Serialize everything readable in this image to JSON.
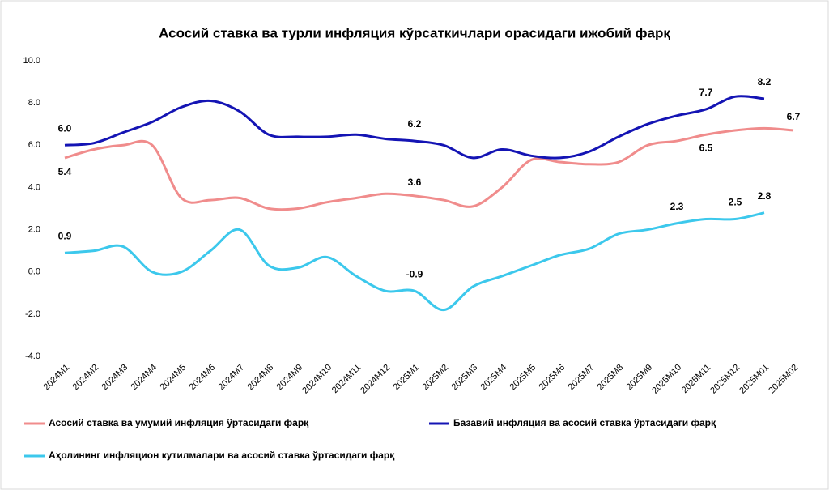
{
  "chart_data": {
    "type": "line",
    "title": "Асосий ставка ва турли инфляция кўрсаткичлари орасидаги ижобий фарқ",
    "categories": [
      "2024M1",
      "2024M2",
      "2024M3",
      "2024M4",
      "2024M5",
      "2024M6",
      "2024M7",
      "2024M8",
      "2024M9",
      "2024M10",
      "2024M11",
      "2024M12",
      "2025M1",
      "2025M2",
      "2025M3",
      "2025M4",
      "2025M5",
      "2025M6",
      "2025M7",
      "2025M8",
      "2025M9",
      "2025M10",
      "2025M11",
      "2025M12",
      "2025M01",
      "2025M02"
    ],
    "ylim": [
      -4,
      10
    ],
    "yticks": [
      {
        "value": -4,
        "label": "-4.0"
      },
      {
        "value": -2,
        "label": "-2.0"
      },
      {
        "value": 0,
        "label": "0.0"
      },
      {
        "value": 2,
        "label": "2.0"
      },
      {
        "value": 4,
        "label": "4.0"
      },
      {
        "value": 6,
        "label": "6.0"
      },
      {
        "value": 8,
        "label": "8.0"
      },
      {
        "value": 10,
        "label": "10.0"
      }
    ],
    "grid": false,
    "series": [
      {
        "name": "Асосий ставка ва умумий инфляция ўртасидаги фарқ",
        "color": "#f08c8c",
        "values": [
          5.4,
          5.8,
          6.0,
          6.0,
          3.5,
          3.4,
          3.5,
          3.0,
          3.0,
          3.3,
          3.5,
          3.7,
          3.6,
          3.4,
          3.1,
          4.0,
          5.3,
          5.2,
          5.1,
          5.2,
          6.0,
          6.2,
          6.5,
          6.7,
          6.8,
          6.7
        ],
        "value_labels": [
          "5.4",
          null,
          null,
          null,
          null,
          null,
          null,
          null,
          null,
          null,
          null,
          null,
          "3.6",
          null,
          null,
          null,
          null,
          null,
          null,
          null,
          null,
          null,
          "6.5",
          null,
          null,
          "6.7"
        ]
      },
      {
        "name": "Базавий инфляция ва асосий ставка ўртасидаги фарқ",
        "color": "#1414b4",
        "values": [
          6.0,
          6.1,
          6.6,
          7.1,
          7.8,
          8.1,
          7.6,
          6.5,
          6.4,
          6.4,
          6.5,
          6.3,
          6.2,
          6.0,
          5.4,
          5.8,
          5.5,
          5.4,
          5.7,
          6.4,
          7.0,
          7.4,
          7.7,
          8.3,
          8.2,
          null
        ],
        "value_labels": [
          "6.0",
          null,
          null,
          null,
          null,
          null,
          null,
          null,
          null,
          null,
          null,
          null,
          "6.2",
          null,
          null,
          null,
          null,
          null,
          null,
          null,
          null,
          null,
          "7.7",
          null,
          "8.2",
          null
        ]
      },
      {
        "name": "Аҳолининг инфляцион кутилмалари ва асосий ставка ўртасидаги фарқ",
        "color": "#3cc8ec",
        "values": [
          0.9,
          1.0,
          1.2,
          0.0,
          0.0,
          1.0,
          2.0,
          0.3,
          0.2,
          0.7,
          -0.2,
          -0.9,
          -0.9,
          -1.8,
          -0.7,
          -0.2,
          0.3,
          0.8,
          1.1,
          1.8,
          2.0,
          2.3,
          2.5,
          2.5,
          2.8,
          null
        ],
        "value_labels": [
          "0.9",
          null,
          null,
          null,
          null,
          null,
          null,
          null,
          null,
          null,
          null,
          null,
          "-0.9",
          null,
          null,
          null,
          null,
          null,
          null,
          null,
          null,
          "2.3",
          null,
          "2.5",
          "2.8",
          null
        ]
      }
    ]
  }
}
